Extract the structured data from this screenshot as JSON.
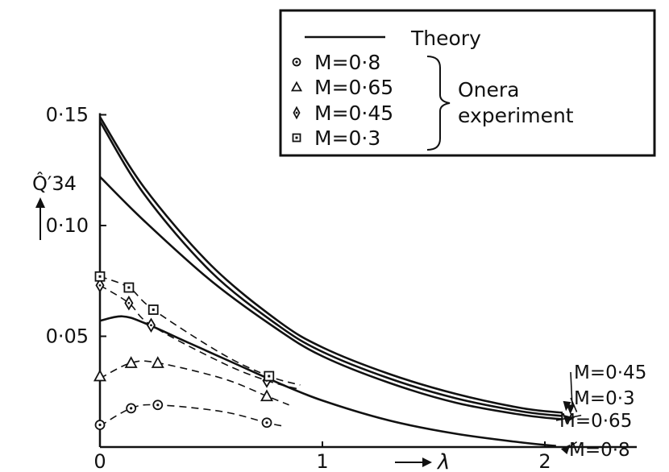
{
  "chart_data": {
    "type": "line",
    "title": "",
    "xlabel": "λ",
    "ylabel": "Q̂′34",
    "xlim": [
      0,
      2.45
    ],
    "ylim": [
      0,
      0.15
    ],
    "x_ticks": [
      {
        "value": 0,
        "label": "0"
      },
      {
        "value": 1,
        "label": "1"
      },
      {
        "value": 2,
        "label": "2"
      }
    ],
    "y_ticks": [
      {
        "value": 0.05,
        "label": "0·05"
      },
      {
        "value": 0.1,
        "label": "0·10"
      },
      {
        "value": 0.15,
        "label": "0·15"
      }
    ],
    "grid": false,
    "legend": {
      "position": "top-right",
      "theory_label": "Theory",
      "group_label_line1": "Onera",
      "group_label_line2": "experiment",
      "entries": [
        {
          "label": "M=0·8",
          "marker": "circle-dot"
        },
        {
          "label": "M=0·65",
          "marker": "triangle"
        },
        {
          "label": "M=0·45",
          "marker": "diamond"
        },
        {
          "label": "M=0·3",
          "marker": "square-dot"
        }
      ]
    },
    "theory_series": [
      {
        "name": "M=0·45",
        "points": [
          [
            0,
            0.149
          ],
          [
            0.2,
            0.117
          ],
          [
            0.5,
            0.082
          ],
          [
            0.8,
            0.057
          ],
          [
            1.0,
            0.045
          ],
          [
            1.3,
            0.033
          ],
          [
            1.6,
            0.024
          ],
          [
            1.9,
            0.0175
          ],
          [
            2.08,
            0.0155
          ]
        ]
      },
      {
        "name": "M=0·3",
        "points": [
          [
            0,
            0.147
          ],
          [
            0.2,
            0.114
          ],
          [
            0.5,
            0.079
          ],
          [
            0.8,
            0.055
          ],
          [
            1.0,
            0.043
          ],
          [
            1.3,
            0.031
          ],
          [
            1.6,
            0.022
          ],
          [
            1.9,
            0.016
          ],
          [
            2.08,
            0.014
          ]
        ]
      },
      {
        "name": "M=0·65",
        "points": [
          [
            0,
            0.122
          ],
          [
            0.2,
            0.102
          ],
          [
            0.5,
            0.075
          ],
          [
            0.8,
            0.053
          ],
          [
            1.0,
            0.041
          ],
          [
            1.3,
            0.029
          ],
          [
            1.6,
            0.02
          ],
          [
            1.9,
            0.0145
          ],
          [
            2.08,
            0.0125
          ]
        ]
      },
      {
        "name": "M=0·8",
        "points": [
          [
            0,
            0.057
          ],
          [
            0.1,
            0.059
          ],
          [
            0.2,
            0.056
          ],
          [
            0.4,
            0.047
          ],
          [
            0.6,
            0.038
          ],
          [
            0.8,
            0.029
          ],
          [
            1.0,
            0.021
          ],
          [
            1.3,
            0.012
          ],
          [
            1.6,
            0.006
          ],
          [
            1.9,
            0.002
          ],
          [
            2.05,
            0.0005
          ]
        ]
      }
    ],
    "experiment_series": [
      {
        "name": "M=0·8",
        "marker": "circle-dot",
        "points": [
          [
            0,
            0.01
          ],
          [
            0.14,
            0.0175
          ],
          [
            0.26,
            0.019
          ],
          [
            0.75,
            0.011
          ]
        ],
        "trend": [
          [
            0,
            0.0095
          ],
          [
            0.14,
            0.0175
          ],
          [
            0.26,
            0.019
          ],
          [
            0.55,
            0.016
          ],
          [
            0.75,
            0.011
          ],
          [
            0.82,
            0.0095
          ]
        ]
      },
      {
        "name": "M=0·65",
        "marker": "triangle",
        "points": [
          [
            0,
            0.032
          ],
          [
            0.14,
            0.038
          ],
          [
            0.26,
            0.038
          ],
          [
            0.75,
            0.023
          ]
        ],
        "trend": [
          [
            0,
            0.031
          ],
          [
            0.14,
            0.038
          ],
          [
            0.26,
            0.038
          ],
          [
            0.55,
            0.031
          ],
          [
            0.75,
            0.023
          ],
          [
            0.85,
            0.019
          ]
        ]
      },
      {
        "name": "M=0·45",
        "marker": "diamond",
        "points": [
          [
            0,
            0.073
          ],
          [
            0.13,
            0.065
          ],
          [
            0.23,
            0.055
          ],
          [
            0.75,
            0.03
          ]
        ],
        "trend": [
          [
            0,
            0.073
          ],
          [
            0.13,
            0.065
          ],
          [
            0.23,
            0.055
          ],
          [
            0.55,
            0.038
          ],
          [
            0.75,
            0.03
          ],
          [
            0.9,
            0.026
          ]
        ]
      },
      {
        "name": "M=0·3",
        "marker": "square-dot",
        "points": [
          [
            0,
            0.077
          ],
          [
            0.13,
            0.072
          ],
          [
            0.24,
            0.062
          ],
          [
            0.76,
            0.032
          ]
        ],
        "trend": [
          [
            0,
            0.077
          ],
          [
            0.13,
            0.072
          ],
          [
            0.24,
            0.062
          ],
          [
            0.55,
            0.042
          ],
          [
            0.76,
            0.032
          ],
          [
            0.9,
            0.028
          ]
        ]
      }
    ],
    "annotations": [
      {
        "label": "M=0·45",
        "series": "M=0·45",
        "point_at": [
          2.08,
          0.0155
        ]
      },
      {
        "label": "M=0·3",
        "series": "M=0·3",
        "point_at": [
          2.1,
          0.014
        ]
      },
      {
        "label": "M=0·65",
        "series": "M=0·65",
        "point_at": [
          2.12,
          0.0125
        ]
      },
      {
        "label": "M=0·8",
        "series": "M=0·8",
        "point_at": [
          2.1,
          0.0005
        ]
      }
    ]
  }
}
